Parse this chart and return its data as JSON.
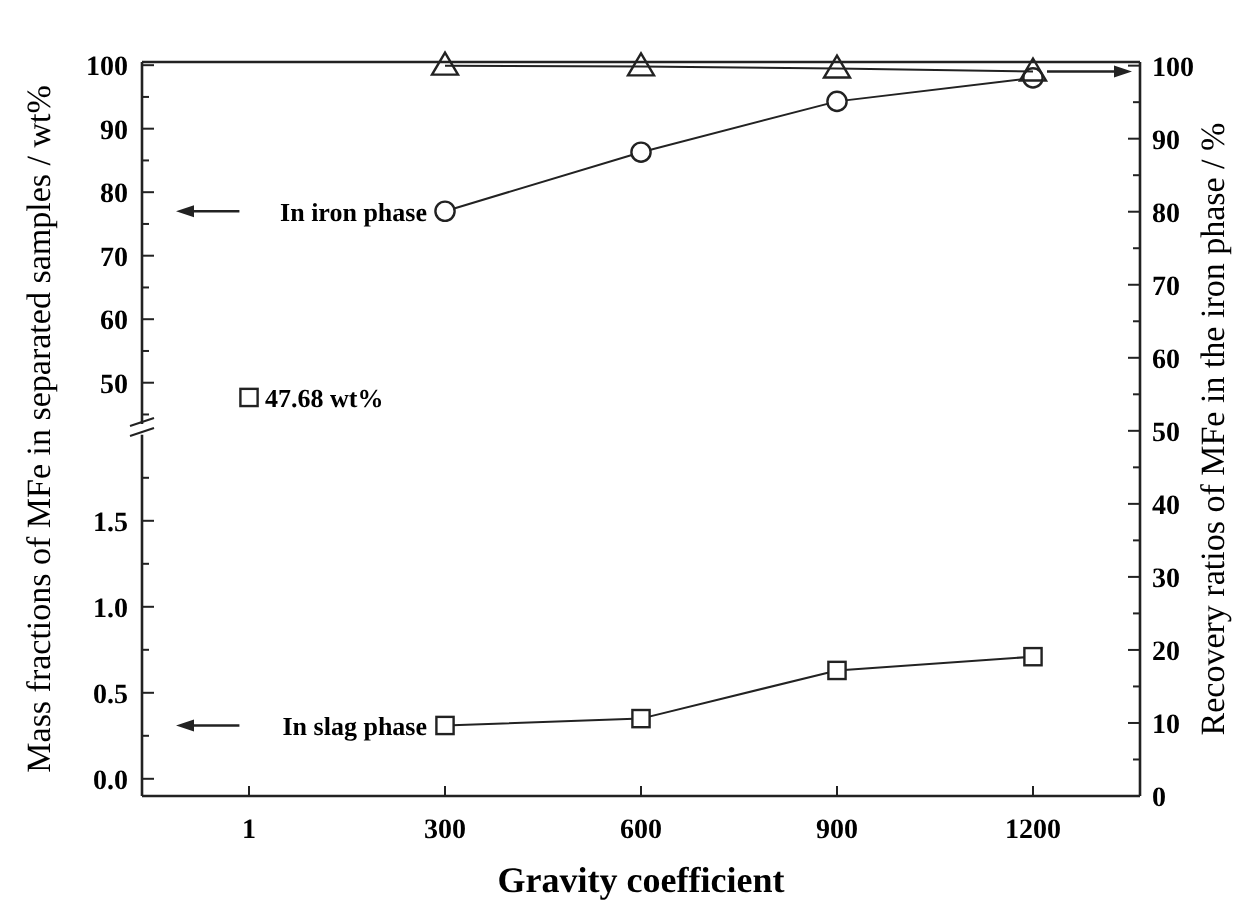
{
  "chart_data": [
    {
      "type": "line",
      "categories": [
        "1",
        "300",
        "600",
        "900",
        "1200"
      ],
      "xlabel": "Gravity coefficient",
      "ylabel": "Mass fractions of MFe in separated samples / wt%",
      "y2label": "Recovery ratios of MFe in the iron phase / %",
      "y2lim": [
        0,
        100.5
      ],
      "y2ticks": [
        0,
        10,
        20,
        30,
        40,
        50,
        60,
        70,
        80,
        90,
        100
      ],
      "series": [
        {
          "color": "#222222",
          "axis": "y2",
          "marker": "triangle",
          "values": [
            null,
            100,
            99.9,
            99.6,
            99.2
          ]
        }
      ]
    },
    {
      "type": "line",
      "categories": [
        "1",
        "300",
        "600",
        "900",
        "1200"
      ],
      "ylim": [
        43.5,
        100.5
      ],
      "yticks": [
        50,
        60,
        70,
        80,
        90,
        100
      ],
      "tick_labels": "y",
      "series": [
        {
          "color": "#222222",
          "marker": "circle",
          "values": [
            null,
            77,
            86.3,
            94.3,
            98
          ]
        },
        {
          "type": "scatter",
          "color": "#222222",
          "marker": "square",
          "values": [
            47.68,
            null,
            null,
            null,
            null
          ]
        }
      ],
      "annotations": [
        "In iron phase",
        "47.68 wt%"
      ]
    },
    {
      "type": "line",
      "categories": [
        "1",
        "300",
        "600",
        "900",
        "1200"
      ],
      "ylim": [
        -0.1,
        2.0
      ],
      "yticks": [
        {
          "value": 0,
          "label": "0.0"
        },
        {
          "value": 0.5,
          "label": "0.5"
        },
        {
          "value": 1,
          "label": "1.0"
        },
        {
          "value": 1.5,
          "label": "1.5"
        }
      ],
      "tick_labels": "y",
      "series": [
        {
          "color": "#222222",
          "marker": "square",
          "values": [
            null,
            0.31,
            0.35,
            0.63,
            0.71
          ]
        }
      ],
      "annotations": [
        "In slag phase"
      ]
    }
  ]
}
